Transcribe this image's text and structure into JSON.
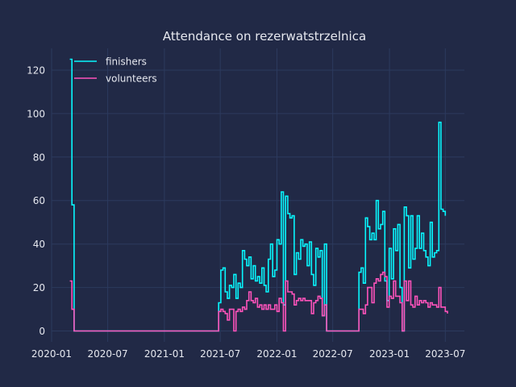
{
  "chart_data": {
    "type": "line",
    "title": "Attendance on rezerwatstrzelnica",
    "xlabel": "",
    "ylabel": "",
    "x_axis_type": "date",
    "xlim": [
      "2020-01-01",
      "2023-09-01"
    ],
    "ylim": [
      -5,
      130
    ],
    "x_ticks": [
      "2020-01-01",
      "2020-07-01",
      "2021-01-01",
      "2021-07-01",
      "2022-01-01",
      "2022-07-01",
      "2023-01-01",
      "2023-07-01"
    ],
    "x_tick_labels": [
      "2020-01",
      "2020-07",
      "2021-01",
      "2021-07",
      "2022-01",
      "2022-07",
      "2023-01",
      "2023-07"
    ],
    "y_ticks": [
      0,
      20,
      40,
      60,
      80,
      100,
      120
    ],
    "y_tick_labels": [
      "0",
      "20",
      "40",
      "60",
      "80",
      "100",
      "120"
    ],
    "grid": true,
    "legend_position": "top-left",
    "colors": {
      "background": "#212946",
      "grid": "#2c3a5e",
      "text": "#e6e8ef"
    },
    "series": [
      {
        "name": "finishers",
        "color": "#08F7FE",
        "step": true,
        "points": [
          [
            "2020-02-29",
            125
          ],
          [
            "2020-03-07",
            58
          ],
          [
            "2020-03-14",
            0
          ],
          [
            "2021-06-19",
            0
          ],
          [
            "2021-06-26",
            13
          ],
          [
            "2021-07-03",
            28
          ],
          [
            "2021-07-10",
            29
          ],
          [
            "2021-07-17",
            18
          ],
          [
            "2021-07-24",
            15
          ],
          [
            "2021-07-31",
            21
          ],
          [
            "2021-08-07",
            20
          ],
          [
            "2021-08-14",
            26
          ],
          [
            "2021-08-21",
            15
          ],
          [
            "2021-08-28",
            22
          ],
          [
            "2021-09-04",
            20
          ],
          [
            "2021-09-11",
            37
          ],
          [
            "2021-09-18",
            33
          ],
          [
            "2021-09-25",
            30
          ],
          [
            "2021-10-02",
            34
          ],
          [
            "2021-10-09",
            24
          ],
          [
            "2021-10-16",
            30
          ],
          [
            "2021-10-23",
            23
          ],
          [
            "2021-10-30",
            25
          ],
          [
            "2021-11-06",
            22
          ],
          [
            "2021-11-13",
            29
          ],
          [
            "2021-11-20",
            21
          ],
          [
            "2021-11-27",
            18
          ],
          [
            "2021-12-04",
            33
          ],
          [
            "2021-12-11",
            40
          ],
          [
            "2021-12-18",
            25
          ],
          [
            "2021-12-25",
            28
          ],
          [
            "2022-01-01",
            42
          ],
          [
            "2022-01-08",
            40
          ],
          [
            "2022-01-15",
            64
          ],
          [
            "2022-01-22",
            12
          ],
          [
            "2022-01-29",
            62
          ],
          [
            "2022-02-05",
            54
          ],
          [
            "2022-02-12",
            52
          ],
          [
            "2022-02-19",
            53
          ],
          [
            "2022-02-26",
            26
          ],
          [
            "2022-03-05",
            36
          ],
          [
            "2022-03-12",
            33
          ],
          [
            "2022-03-19",
            42
          ],
          [
            "2022-03-26",
            39
          ],
          [
            "2022-04-02",
            40
          ],
          [
            "2022-04-09",
            30
          ],
          [
            "2022-04-16",
            41
          ],
          [
            "2022-04-23",
            26
          ],
          [
            "2022-04-30",
            21
          ],
          [
            "2022-05-07",
            38
          ],
          [
            "2022-05-14",
            34
          ],
          [
            "2022-05-21",
            37
          ],
          [
            "2022-05-28",
            7
          ],
          [
            "2022-06-04",
            40
          ],
          [
            "2022-06-11",
            0
          ],
          [
            "2022-09-24",
            27
          ],
          [
            "2022-10-01",
            29
          ],
          [
            "2022-10-08",
            22
          ],
          [
            "2022-10-15",
            52
          ],
          [
            "2022-10-22",
            48
          ],
          [
            "2022-10-29",
            42
          ],
          [
            "2022-11-05",
            45
          ],
          [
            "2022-11-12",
            42
          ],
          [
            "2022-11-19",
            60
          ],
          [
            "2022-11-26",
            47
          ],
          [
            "2022-12-03",
            49
          ],
          [
            "2022-12-10",
            55
          ],
          [
            "2022-12-17",
            23
          ],
          [
            "2022-12-24",
            14
          ],
          [
            "2022-12-31",
            38
          ],
          [
            "2023-01-07",
            24
          ],
          [
            "2023-01-14",
            47
          ],
          [
            "2023-01-21",
            37
          ],
          [
            "2023-01-28",
            49
          ],
          [
            "2023-02-04",
            20
          ],
          [
            "2023-02-11",
            0
          ],
          [
            "2023-02-18",
            57
          ],
          [
            "2023-02-25",
            53
          ],
          [
            "2023-03-04",
            29
          ],
          [
            "2023-03-11",
            53
          ],
          [
            "2023-03-18",
            33
          ],
          [
            "2023-03-25",
            38
          ],
          [
            "2023-04-01",
            53
          ],
          [
            "2023-04-08",
            38
          ],
          [
            "2023-04-15",
            45
          ],
          [
            "2023-04-22",
            37
          ],
          [
            "2023-04-29",
            34
          ],
          [
            "2023-05-06",
            30
          ],
          [
            "2023-05-13",
            50
          ],
          [
            "2023-05-20",
            34
          ],
          [
            "2023-05-27",
            36
          ],
          [
            "2023-06-03",
            37
          ],
          [
            "2023-06-10",
            96
          ],
          [
            "2023-06-17",
            56
          ],
          [
            "2023-06-24",
            55
          ],
          [
            "2023-07-01",
            53
          ]
        ]
      },
      {
        "name": "volunteers",
        "color": "#FE53BB",
        "step": true,
        "points": [
          [
            "2020-02-29",
            23
          ],
          [
            "2020-03-07",
            10
          ],
          [
            "2020-03-14",
            0
          ],
          [
            "2021-06-19",
            0
          ],
          [
            "2021-06-26",
            9
          ],
          [
            "2021-07-03",
            10
          ],
          [
            "2021-07-10",
            9
          ],
          [
            "2021-07-17",
            8
          ],
          [
            "2021-07-24",
            5
          ],
          [
            "2021-07-31",
            10
          ],
          [
            "2021-08-07",
            10
          ],
          [
            "2021-08-14",
            0
          ],
          [
            "2021-08-21",
            9
          ],
          [
            "2021-08-28",
            10
          ],
          [
            "2021-09-04",
            9
          ],
          [
            "2021-09-11",
            11
          ],
          [
            "2021-09-18",
            10
          ],
          [
            "2021-09-25",
            14
          ],
          [
            "2021-10-02",
            18
          ],
          [
            "2021-10-09",
            14
          ],
          [
            "2021-10-16",
            13
          ],
          [
            "2021-10-23",
            15
          ],
          [
            "2021-10-30",
            11
          ],
          [
            "2021-11-06",
            12
          ],
          [
            "2021-11-13",
            10
          ],
          [
            "2021-11-20",
            12
          ],
          [
            "2021-11-27",
            10
          ],
          [
            "2021-12-04",
            12
          ],
          [
            "2021-12-11",
            10
          ],
          [
            "2021-12-18",
            10
          ],
          [
            "2021-12-25",
            12
          ],
          [
            "2022-01-01",
            9
          ],
          [
            "2022-01-08",
            15
          ],
          [
            "2022-01-15",
            13
          ],
          [
            "2022-01-22",
            0
          ],
          [
            "2022-01-29",
            23
          ],
          [
            "2022-02-05",
            18
          ],
          [
            "2022-02-12",
            18
          ],
          [
            "2022-02-19",
            17
          ],
          [
            "2022-02-26",
            12
          ],
          [
            "2022-03-05",
            14
          ],
          [
            "2022-03-12",
            15
          ],
          [
            "2022-03-19",
            14
          ],
          [
            "2022-03-26",
            15
          ],
          [
            "2022-04-02",
            14
          ],
          [
            "2022-04-09",
            14
          ],
          [
            "2022-04-16",
            14
          ],
          [
            "2022-04-23",
            8
          ],
          [
            "2022-04-30",
            13
          ],
          [
            "2022-05-07",
            14
          ],
          [
            "2022-05-14",
            16
          ],
          [
            "2022-05-21",
            15
          ],
          [
            "2022-05-28",
            7
          ],
          [
            "2022-06-04",
            12
          ],
          [
            "2022-06-11",
            0
          ],
          [
            "2022-09-24",
            10
          ],
          [
            "2022-10-01",
            10
          ],
          [
            "2022-10-08",
            8
          ],
          [
            "2022-10-15",
            12
          ],
          [
            "2022-10-22",
            20
          ],
          [
            "2022-10-29",
            20
          ],
          [
            "2022-11-05",
            13
          ],
          [
            "2022-11-12",
            22
          ],
          [
            "2022-11-19",
            24
          ],
          [
            "2022-11-26",
            23
          ],
          [
            "2022-12-03",
            26
          ],
          [
            "2022-12-10",
            27
          ],
          [
            "2022-12-17",
            25
          ],
          [
            "2022-12-24",
            11
          ],
          [
            "2022-12-31",
            16
          ],
          [
            "2023-01-07",
            15
          ],
          [
            "2023-01-14",
            23
          ],
          [
            "2023-01-21",
            16
          ],
          [
            "2023-01-28",
            16
          ],
          [
            "2023-02-04",
            13
          ],
          [
            "2023-02-11",
            0
          ],
          [
            "2023-02-18",
            23
          ],
          [
            "2023-02-25",
            14
          ],
          [
            "2023-03-04",
            23
          ],
          [
            "2023-03-11",
            12
          ],
          [
            "2023-03-18",
            11
          ],
          [
            "2023-03-25",
            16
          ],
          [
            "2023-04-01",
            12
          ],
          [
            "2023-04-08",
            14
          ],
          [
            "2023-04-15",
            13
          ],
          [
            "2023-04-22",
            14
          ],
          [
            "2023-04-29",
            13
          ],
          [
            "2023-05-06",
            11
          ],
          [
            "2023-05-13",
            13
          ],
          [
            "2023-05-20",
            12
          ],
          [
            "2023-05-27",
            12
          ],
          [
            "2023-06-03",
            11
          ],
          [
            "2023-06-10",
            20
          ],
          [
            "2023-06-17",
            11
          ],
          [
            "2023-06-24",
            11
          ],
          [
            "2023-07-01",
            9
          ],
          [
            "2023-07-08",
            8
          ]
        ]
      }
    ]
  }
}
